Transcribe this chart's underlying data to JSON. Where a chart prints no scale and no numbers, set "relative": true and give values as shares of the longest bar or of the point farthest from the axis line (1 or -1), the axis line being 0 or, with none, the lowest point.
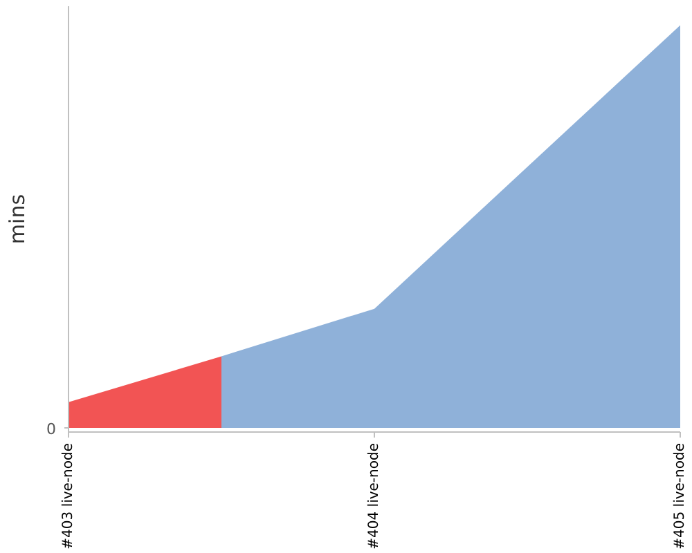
{
  "chart_data": {
    "type": "area",
    "ylabel": "mins",
    "relative": true,
    "categories": [
      "#403 live-node",
      null,
      "#404 live-node",
      null,
      "#405 live-node"
    ],
    "series": [
      {
        "color": "#f25454",
        "values": [
          0.064,
          0.178,
          null,
          null,
          null
        ]
      },
      {
        "color": "#8fb1d9",
        "values": [
          null,
          0.178,
          0.296,
          0.648,
          1
        ]
      }
    ],
    "annotations": [
      "0"
    ]
  }
}
